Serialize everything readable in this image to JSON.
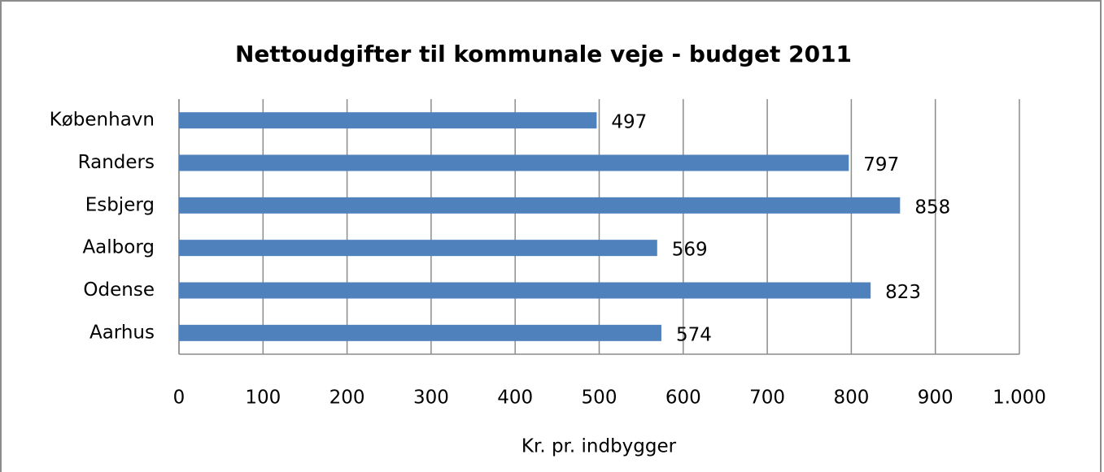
{
  "chart_data": {
    "type": "bar",
    "orientation": "horizontal",
    "title": "Nettoudgifter til kommunale veje - budget 2011",
    "x_label": "Kr. pr. indbygger",
    "categories": [
      "København",
      "Randers",
      "Esbjerg",
      "Aalborg",
      "Odense",
      "Aarhus"
    ],
    "values": [
      497,
      797,
      858,
      569,
      823,
      574
    ],
    "color": "#4f81bd",
    "xlim": [
      0,
      1000
    ],
    "xticks": [
      0,
      100,
      200,
      300,
      400,
      500,
      600,
      700,
      800,
      900,
      {
        "value": 1000,
        "label": "1.000"
      }
    ],
    "grid": true
  }
}
